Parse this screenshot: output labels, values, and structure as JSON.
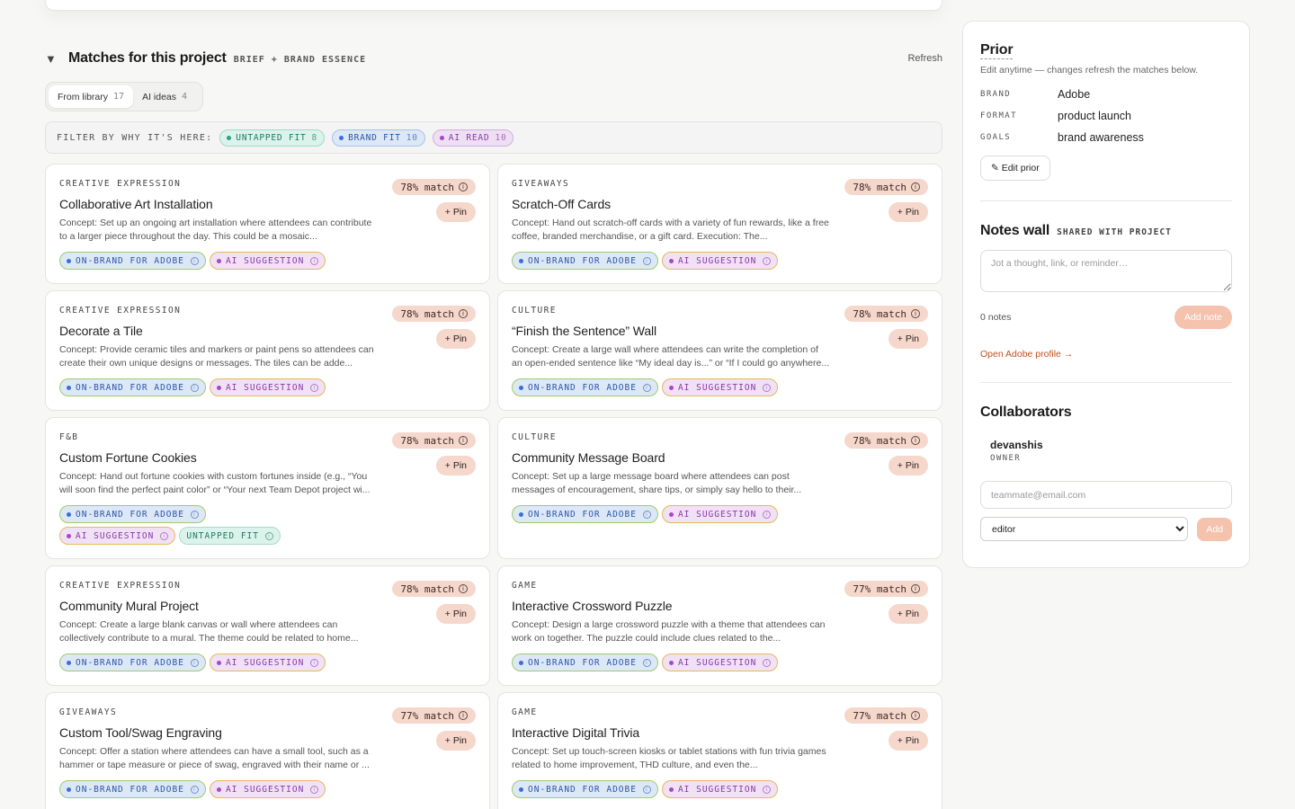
{
  "section": {
    "caret": "▼",
    "title": "Matches for this project",
    "subtitle": "BRIEF + BRAND ESSENCE",
    "refresh": "Refresh"
  },
  "toggle": {
    "library_label": "From library",
    "library_count": "17",
    "ai_label": "AI ideas",
    "ai_count": "4"
  },
  "filter": {
    "label": "FILTER BY WHY IT'S HERE:",
    "chips": [
      {
        "label": "UNTAPPED FIT",
        "count": "8"
      },
      {
        "label": "BRAND FIT",
        "count": "10"
      },
      {
        "label": "AI READ",
        "count": "10"
      }
    ]
  },
  "tags": {
    "brand": "ON-BRAND FOR ADOBE",
    "ai": "AI SUGGESTION",
    "untapped": "UNTAPPED FIT",
    "info": "i"
  },
  "pin_label": "+ Pin",
  "cards": [
    {
      "category": "CREATIVE EXPRESSION",
      "title": "Collaborative Art Installation",
      "match": "78% match",
      "desc": "Concept: Set up an ongoing art installation where attendees can contribute to a larger piece throughout the day. This could be a mosaic..."
    },
    {
      "category": "GIVEAWAYS",
      "title": "Scratch-Off Cards",
      "match": "78% match",
      "desc": "Concept: Hand out scratch-off cards with a variety of fun rewards, like a free coffee, branded merchandise, or a gift card. Execution: The..."
    },
    {
      "category": "CREATIVE EXPRESSION",
      "title": "Decorate a Tile",
      "match": "78% match",
      "desc": "Concept: Provide ceramic tiles and markers or paint pens so attendees can create their own unique designs or messages. The tiles can be adde..."
    },
    {
      "category": "CULTURE",
      "title": "“Finish the Sentence” Wall",
      "match": "78% match",
      "desc": "Concept: Create a large wall where attendees can write the completion of an open-ended sentence like “My ideal day is...” or “If I could go anywhere..."
    },
    {
      "category": "F&B",
      "title": "Custom Fortune Cookies",
      "match": "78% match",
      "desc": "Concept: Hand out fortune cookies with custom fortunes inside (e.g., “You will soon find the perfect paint color” or “Your next Team Depot project wi..."
    },
    {
      "category": "CULTURE",
      "title": "Community Message Board",
      "match": "78% match",
      "desc": "Concept: Set up a large message board where attendees can post messages of encouragement, share tips, or simply say hello to their..."
    },
    {
      "category": "CREATIVE EXPRESSION",
      "title": "Community Mural Project",
      "match": "78% match",
      "desc": "Concept: Create a large blank canvas or wall where attendees can collectively contribute to a mural. The theme could be related to home..."
    },
    {
      "category": "GAME",
      "title": "Interactive Crossword Puzzle",
      "match": "77% match",
      "desc": "Concept: Design a large crossword puzzle with a theme that attendees can work on together. The puzzle could include clues related to the..."
    },
    {
      "category": "GIVEAWAYS",
      "title": "Custom Tool/Swag Engraving",
      "match": "77% match",
      "desc": "Concept: Offer a station where attendees can have a small tool, such as a hammer or tape measure or piece of swag, engraved with their name or ..."
    },
    {
      "category": "GAME",
      "title": "Interactive Digital Trivia",
      "match": "77% match",
      "desc": "Concept: Set up touch-screen kiosks or tablet stations with fun trivia games related to home improvement, THD culture, and even the..."
    }
  ],
  "prior": {
    "title": "Prior",
    "subtitle": "Edit anytime — changes refresh the matches below.",
    "brand_key": "BRAND",
    "brand_val": "Adobe",
    "format_key": "FORMAT",
    "format_val": "product launch",
    "goals_key": "GOALS",
    "goals_val": "brand awareness",
    "edit_label": "✎ Edit prior"
  },
  "notes": {
    "title": "Notes wall",
    "subtitle": "SHARED WITH PROJECT",
    "placeholder": "Jot a thought, link, or reminder…",
    "count": "0 notes",
    "add_label": "Add note",
    "profile_link": "Open Adobe profile →"
  },
  "collab": {
    "title": "Collaborators",
    "name": "devanshis",
    "role": "OWNER",
    "email_placeholder": "teammate@email.com",
    "role_option": "editor",
    "add_label": "Add"
  },
  "colors": {
    "accent_peach": "#f6d7cb",
    "link_orange": "#c4501e"
  }
}
